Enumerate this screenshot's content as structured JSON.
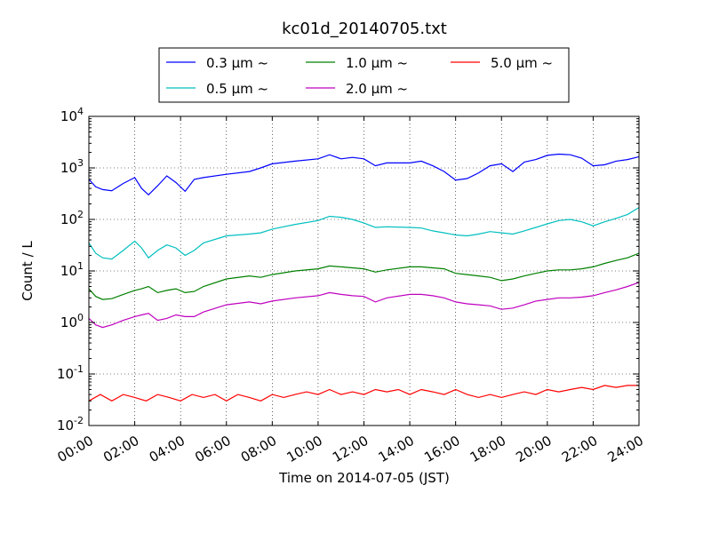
{
  "chart_data": {
    "type": "line",
    "title": "kc01d_20140705.txt",
    "xlabel": "Time on 2014-07-05 (JST)",
    "ylabel": "Count / L",
    "yscale": "log",
    "xlim": [
      0,
      24
    ],
    "ylim": [
      0.01,
      10000
    ],
    "grid": true,
    "legend_position": "top",
    "x_tick_labels": [
      "00:00",
      "02:00",
      "04:00",
      "06:00",
      "08:00",
      "10:00",
      "12:00",
      "14:00",
      "16:00",
      "18:00",
      "20:00",
      "22:00",
      "24:00"
    ],
    "y_tick_labels": [
      {
        "base": "10",
        "exp": "-2"
      },
      {
        "base": "10",
        "exp": "-1"
      },
      {
        "base": "10",
        "exp": "0"
      },
      {
        "base": "10",
        "exp": "1"
      },
      {
        "base": "10",
        "exp": "2"
      },
      {
        "base": "10",
        "exp": "3"
      },
      {
        "base": "10",
        "exp": "4"
      }
    ],
    "series": [
      {
        "name": "0.3 µm ~",
        "color": "#0000ff",
        "x": [
          0,
          0.3,
          0.6,
          1,
          1.5,
          2,
          2.3,
          2.6,
          3,
          3.4,
          3.8,
          4.2,
          4.6,
          5,
          6,
          7,
          7.5,
          8,
          9,
          10,
          10.5,
          11,
          11.5,
          12,
          12.5,
          13,
          14,
          14.5,
          15,
          15.5,
          16,
          16.5,
          17,
          17.5,
          18,
          18.5,
          19,
          19.5,
          20,
          20.5,
          21,
          21.5,
          22,
          22.5,
          23,
          23.5,
          24
        ],
        "y": [
          600,
          430,
          380,
          360,
          500,
          650,
          400,
          300,
          450,
          700,
          520,
          350,
          600,
          650,
          750,
          850,
          1000,
          1200,
          1350,
          1500,
          1800,
          1500,
          1600,
          1500,
          1100,
          1250,
          1250,
          1350,
          1100,
          850,
          580,
          620,
          800,
          1100,
          1200,
          850,
          1300,
          1450,
          1750,
          1850,
          1800,
          1550,
          1100,
          1150,
          1350,
          1450,
          1650
        ]
      },
      {
        "name": "0.5 µm ~",
        "color": "#00bfbf",
        "x": [
          0,
          0.3,
          0.6,
          1,
          1.5,
          2,
          2.3,
          2.6,
          3,
          3.4,
          3.8,
          4.2,
          4.6,
          5,
          6,
          7,
          7.5,
          8,
          9,
          10,
          10.5,
          11,
          11.5,
          12,
          12.5,
          13,
          14,
          14.5,
          15,
          15.5,
          16,
          16.5,
          17,
          17.5,
          18,
          18.5,
          19,
          19.5,
          20,
          20.5,
          21,
          21.5,
          22,
          22.5,
          23,
          23.5,
          24
        ],
        "y": [
          35,
          22,
          18,
          17,
          25,
          38,
          28,
          18,
          25,
          32,
          28,
          20,
          25,
          35,
          48,
          52,
          55,
          65,
          80,
          95,
          115,
          110,
          100,
          85,
          70,
          72,
          70,
          68,
          60,
          55,
          50,
          48,
          52,
          58,
          55,
          52,
          60,
          70,
          82,
          95,
          100,
          90,
          75,
          90,
          105,
          125,
          170
        ]
      },
      {
        "name": "1.0 µm ~",
        "color": "#008000",
        "x": [
          0,
          0.3,
          0.6,
          1,
          1.5,
          2,
          2.3,
          2.6,
          3,
          3.4,
          3.8,
          4.2,
          4.6,
          5,
          6,
          7,
          7.5,
          8,
          9,
          10,
          10.5,
          11,
          11.5,
          12,
          12.5,
          13,
          14,
          14.5,
          15,
          15.5,
          16,
          16.5,
          17,
          17.5,
          18,
          18.5,
          19,
          19.5,
          20,
          20.5,
          21,
          21.5,
          22,
          22.5,
          23,
          23.5,
          24
        ],
        "y": [
          4.5,
          3.2,
          2.8,
          2.9,
          3.5,
          4.2,
          4.5,
          5,
          3.8,
          4.2,
          4.5,
          3.8,
          4,
          5,
          7,
          8,
          7.5,
          8.5,
          10,
          11,
          12.5,
          12,
          11.5,
          11,
          9.5,
          10.5,
          12,
          12,
          11.5,
          11,
          9,
          8.5,
          8,
          7.5,
          6.5,
          7,
          8,
          9,
          10,
          10.5,
          10.5,
          11,
          12,
          14,
          16,
          18,
          22
        ]
      },
      {
        "name": "2.0 µm ~",
        "color": "#bf00bf",
        "x": [
          0,
          0.3,
          0.6,
          1,
          1.5,
          2,
          2.3,
          2.6,
          3,
          3.4,
          3.8,
          4.2,
          4.6,
          5,
          6,
          7,
          7.5,
          8,
          9,
          10,
          10.5,
          11,
          11.5,
          12,
          12.5,
          13,
          14,
          14.5,
          15,
          15.5,
          16,
          16.5,
          17,
          17.5,
          18,
          18.5,
          19,
          19.5,
          20,
          20.5,
          21,
          21.5,
          22,
          22.5,
          23,
          23.5,
          24
        ],
        "y": [
          1.2,
          0.9,
          0.8,
          0.9,
          1.1,
          1.3,
          1.4,
          1.5,
          1.1,
          1.2,
          1.4,
          1.3,
          1.3,
          1.6,
          2.2,
          2.5,
          2.3,
          2.6,
          3,
          3.3,
          3.8,
          3.5,
          3.3,
          3.2,
          2.5,
          3,
          3.5,
          3.5,
          3.3,
          3,
          2.5,
          2.3,
          2.2,
          2.1,
          1.8,
          1.9,
          2.2,
          2.6,
          2.8,
          3,
          3,
          3.1,
          3.3,
          3.8,
          4.3,
          5,
          6
        ]
      },
      {
        "name": "5.0 µm ~",
        "color": "#ff0000",
        "x": [
          0,
          0.5,
          1,
          1.5,
          2,
          2.5,
          3,
          3.5,
          4,
          4.5,
          5,
          5.5,
          6,
          6.5,
          7,
          7.5,
          8,
          8.5,
          9,
          9.5,
          10,
          10.5,
          11,
          11.5,
          12,
          12.5,
          13,
          13.5,
          14,
          14.5,
          15,
          15.5,
          16,
          16.5,
          17,
          17.5,
          18,
          18.5,
          19,
          19.5,
          20,
          20.5,
          21,
          21.5,
          22,
          22.5,
          23,
          23.5,
          24
        ],
        "y": [
          0.03,
          0.04,
          0.03,
          0.04,
          0.035,
          0.03,
          0.04,
          0.035,
          0.03,
          0.04,
          0.035,
          0.04,
          0.03,
          0.04,
          0.035,
          0.03,
          0.04,
          0.035,
          0.04,
          0.045,
          0.04,
          0.05,
          0.04,
          0.045,
          0.04,
          0.05,
          0.045,
          0.05,
          0.04,
          0.05,
          0.045,
          0.04,
          0.05,
          0.04,
          0.035,
          0.04,
          0.035,
          0.04,
          0.045,
          0.04,
          0.05,
          0.045,
          0.05,
          0.055,
          0.05,
          0.06,
          0.055,
          0.06,
          0.06
        ]
      }
    ]
  }
}
